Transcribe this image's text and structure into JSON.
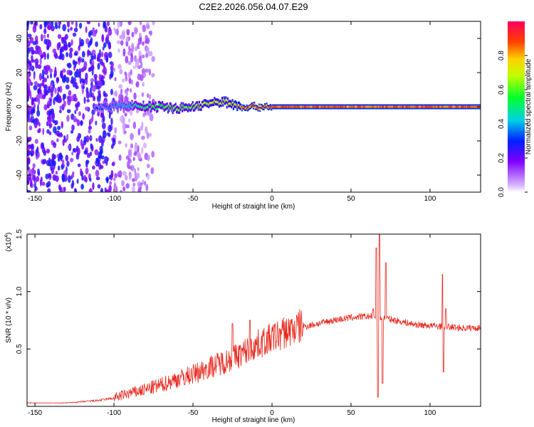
{
  "figure_title": "C2E2.2026.056.04.07.E29",
  "chart_data": [
    {
      "type": "heatmap",
      "title": "C2E2.2026.056.04.07.E29",
      "xlabel": "Height of straight line (km)",
      "ylabel": "Frequency (Hz)",
      "xlim": [
        -155,
        132
      ],
      "ylim": [
        -50,
        50
      ],
      "x_ticks": [
        -150,
        -100,
        -50,
        0,
        50,
        100
      ],
      "y_ticks": [
        -40,
        -20,
        0,
        20,
        40
      ],
      "x_tick_labels": [
        "-150",
        "-100",
        "-50",
        "0",
        "50",
        "100"
      ],
      "y_tick_labels": [
        "-40",
        "-20",
        "0",
        "20",
        "40"
      ],
      "colorbar": {
        "label": "Normalized spectral amplitude",
        "range": [
          0,
          1
        ],
        "ticks": [
          0.0,
          0.2,
          0.4,
          0.6,
          0.8
        ],
        "tick_labels": [
          "0.0",
          "0.2",
          "0.4",
          "0.6",
          "0.8"
        ]
      },
      "ridge": {
        "x": [
          -112,
          -100,
          -90,
          -80,
          -70,
          -60,
          -50,
          -40,
          -30,
          -20,
          0,
          20,
          40,
          60,
          80,
          100,
          120,
          132
        ],
        "frequency": [
          0,
          0,
          1,
          0,
          0,
          -1,
          0,
          2,
          3,
          0,
          0,
          0,
          0,
          0,
          0,
          0,
          0,
          0
        ],
        "amplitude": [
          0.35,
          0.4,
          0.5,
          0.6,
          0.65,
          0.7,
          0.7,
          0.75,
          0.8,
          0.9,
          0.95,
          0.95,
          0.95,
          0.95,
          0.95,
          0.95,
          0.95,
          0.95
        ]
      }
    },
    {
      "type": "line",
      "xlabel": "Height of straight line (km)",
      "ylabel": "SNR (10 * v/v)",
      "y_multiplier": "(x10",
      "y_multiplier_exp": "4",
      "y_multiplier_close": ")",
      "xlim": [
        -155,
        132
      ],
      "ylim": [
        0,
        1.5
      ],
      "x_ticks": [
        -150,
        -100,
        -50,
        0,
        50,
        100
      ],
      "y_ticks": [
        0.5,
        1.0,
        1.5
      ],
      "x_tick_labels": [
        "-150",
        "-100",
        "-50",
        "0",
        "50",
        "100"
      ],
      "y_tick_labels": [
        "0.5",
        "1.0",
        "1.5"
      ],
      "color": "#e8281e",
      "envelope": {
        "x": [
          -155,
          -130,
          -110,
          -100,
          -90,
          -80,
          -70,
          -60,
          -50,
          -40,
          -30,
          -20,
          -10,
          0,
          10,
          20,
          30,
          40,
          50,
          60,
          64,
          70,
          80,
          90,
          100,
          110,
          120,
          132
        ],
        "y": [
          0.03,
          0.03,
          0.05,
          0.07,
          0.11,
          0.14,
          0.18,
          0.23,
          0.27,
          0.33,
          0.38,
          0.44,
          0.52,
          0.58,
          0.64,
          0.69,
          0.72,
          0.75,
          0.77,
          0.78,
          0.78,
          0.77,
          0.74,
          0.71,
          0.7,
          0.69,
          0.68,
          0.68
        ]
      },
      "spikes": [
        {
          "x": -25,
          "y": 0.72
        },
        {
          "x": -14,
          "y": 0.75
        },
        {
          "x": 64,
          "y": 0.85
        },
        {
          "x": 66,
          "y": 1.38
        },
        {
          "x": 67,
          "y": 0.08
        },
        {
          "x": 68,
          "y": 1.5
        },
        {
          "x": 70,
          "y": 0.2
        },
        {
          "x": 72,
          "y": 1.25
        },
        {
          "x": 108,
          "y": 1.15
        },
        {
          "x": 108.6,
          "y": 0.3
        },
        {
          "x": 110,
          "y": 0.85
        }
      ]
    }
  ]
}
